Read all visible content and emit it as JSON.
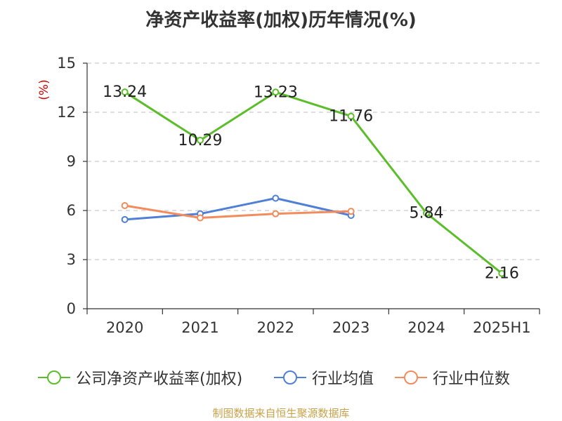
{
  "title": "净资产收益率(加权)历年情况(%)",
  "source": "制图数据来自恒生聚源数据库",
  "colors": {
    "company": "#5cbd2a",
    "industry_avg": "#4f7fd6",
    "industry_median": "#f28c5c",
    "axis": "#333333",
    "grid": "#cccccc",
    "unit": "#cc0000"
  },
  "chart_data": {
    "type": "line",
    "categories": [
      "2020",
      "2021",
      "2022",
      "2023",
      "2024",
      "2025H1"
    ],
    "ylabel": "(%)",
    "xlabel": "",
    "ylim": [
      0,
      15
    ],
    "yticks": [
      0,
      3,
      6,
      9,
      12,
      15
    ],
    "grid": true,
    "legend_position": "bottom",
    "series": [
      {
        "name": "公司净资产收益率(加权)",
        "color_key": "company",
        "values": [
          13.24,
          10.29,
          13.23,
          11.76,
          5.84,
          2.16
        ],
        "labels": [
          "13.24",
          "10.29",
          "13.23",
          "11.76",
          "5.84",
          "2.16"
        ]
      },
      {
        "name": "行业均值",
        "color_key": "industry_avg",
        "values": [
          5.45,
          5.8,
          6.75,
          5.7,
          null,
          null
        ],
        "labels": []
      },
      {
        "name": "行业中位数",
        "color_key": "industry_median",
        "values": [
          6.3,
          5.55,
          5.8,
          5.95,
          null,
          null
        ],
        "labels": []
      }
    ]
  }
}
